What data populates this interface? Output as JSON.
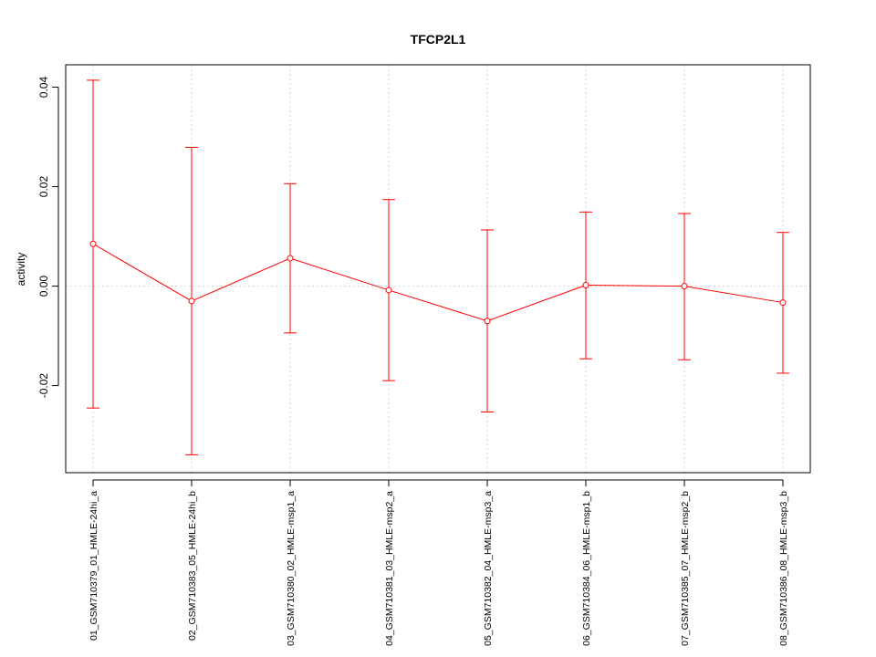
{
  "chart_data": {
    "type": "line",
    "title": "TFCP2L1",
    "xlabel": "",
    "ylabel": "activity",
    "categories": [
      "01_GSM710379_01_HMLE-24hi_a",
      "02_GSM710383_05_HMLE-24hi_b",
      "03_GSM710380_02_HMLE-msp1_a",
      "04_GSM710381_03_HMLE-msp2_a",
      "05_GSM710382_04_HMLE-msp3_a",
      "06_GSM710384_06_HMLE-msp1_b",
      "07_GSM710385_07_HMLE-msp2_b",
      "08_GSM710386_08_HMLE-msp3_b"
    ],
    "series": [
      {
        "values": [
          0.0085,
          -0.003,
          0.0056,
          -0.0008,
          -0.007,
          0.0002,
          0.0,
          -0.0033
        ],
        "upper": [
          0.0414,
          0.0279,
          0.0206,
          0.0174,
          0.0113,
          0.0149,
          0.0146,
          0.0108
        ],
        "lower": [
          -0.0245,
          -0.0339,
          -0.0094,
          -0.019,
          -0.0253,
          -0.0146,
          -0.0148,
          -0.0175
        ],
        "color": "#ff0000"
      }
    ],
    "yticks": [
      -0.02,
      0.0,
      0.02,
      0.04
    ],
    "ytick_labels": [
      "-0.02",
      "0.00",
      "0.02",
      "0.04"
    ],
    "ylim": [
      -0.0375,
      0.0445
    ],
    "grid": true,
    "grid_color": "#d3d3d3"
  }
}
